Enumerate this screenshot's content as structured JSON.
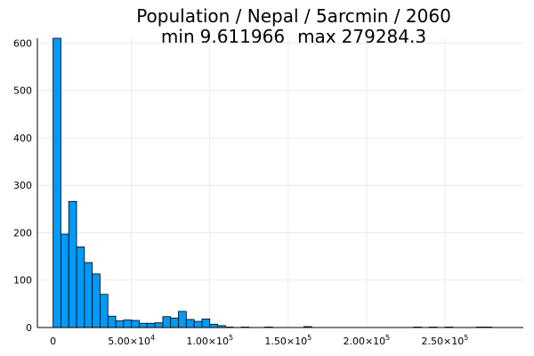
{
  "chart_data": {
    "type": "bar",
    "title": "Population / Nepal / 5arcmin / 2060",
    "subtitle_parts": {
      "min_label": "min",
      "min_value": "9.611966",
      "max_label": "max",
      "max_value": "279284.3"
    },
    "xlabel": "",
    "ylabel": "",
    "bin_width": 5000,
    "xlim": [
      -10000,
      300000
    ],
    "ylim": [
      0,
      610
    ],
    "grid": true,
    "legend": "none",
    "bar_color": "#009af9",
    "edge_color": "#000000",
    "x_ticks": [
      {
        "value": 0,
        "mantissa": "0",
        "exponent": ""
      },
      {
        "value": 50000,
        "mantissa": "5.00×10",
        "exponent": "4"
      },
      {
        "value": 100000,
        "mantissa": "1.00×10",
        "exponent": "5"
      },
      {
        "value": 150000,
        "mantissa": "1.50×10",
        "exponent": "5"
      },
      {
        "value": 200000,
        "mantissa": "2.00×10",
        "exponent": "5"
      },
      {
        "value": 250000,
        "mantissa": "2.50×10",
        "exponent": "5"
      }
    ],
    "y_ticks": [
      0,
      100,
      200,
      300,
      400,
      500,
      600
    ],
    "bins": [
      {
        "x0": 0,
        "count": 610
      },
      {
        "x0": 5000,
        "count": 197
      },
      {
        "x0": 10000,
        "count": 266
      },
      {
        "x0": 15000,
        "count": 170
      },
      {
        "x0": 20000,
        "count": 137
      },
      {
        "x0": 25000,
        "count": 113
      },
      {
        "x0": 30000,
        "count": 70
      },
      {
        "x0": 35000,
        "count": 24
      },
      {
        "x0": 40000,
        "count": 14
      },
      {
        "x0": 45000,
        "count": 16
      },
      {
        "x0": 50000,
        "count": 15
      },
      {
        "x0": 55000,
        "count": 9
      },
      {
        "x0": 60000,
        "count": 9
      },
      {
        "x0": 65000,
        "count": 10
      },
      {
        "x0": 70000,
        "count": 23
      },
      {
        "x0": 75000,
        "count": 20
      },
      {
        "x0": 80000,
        "count": 34
      },
      {
        "x0": 85000,
        "count": 17
      },
      {
        "x0": 90000,
        "count": 13
      },
      {
        "x0": 95000,
        "count": 18
      },
      {
        "x0": 100000,
        "count": 7
      },
      {
        "x0": 105000,
        "count": 4
      },
      {
        "x0": 110000,
        "count": 1
      },
      {
        "x0": 120000,
        "count": 1
      },
      {
        "x0": 135000,
        "count": 1
      },
      {
        "x0": 160000,
        "count": 2
      },
      {
        "x0": 230000,
        "count": 1
      },
      {
        "x0": 240000,
        "count": 1
      },
      {
        "x0": 250000,
        "count": 1
      },
      {
        "x0": 270000,
        "count": 1
      },
      {
        "x0": 275000,
        "count": 1
      }
    ]
  }
}
